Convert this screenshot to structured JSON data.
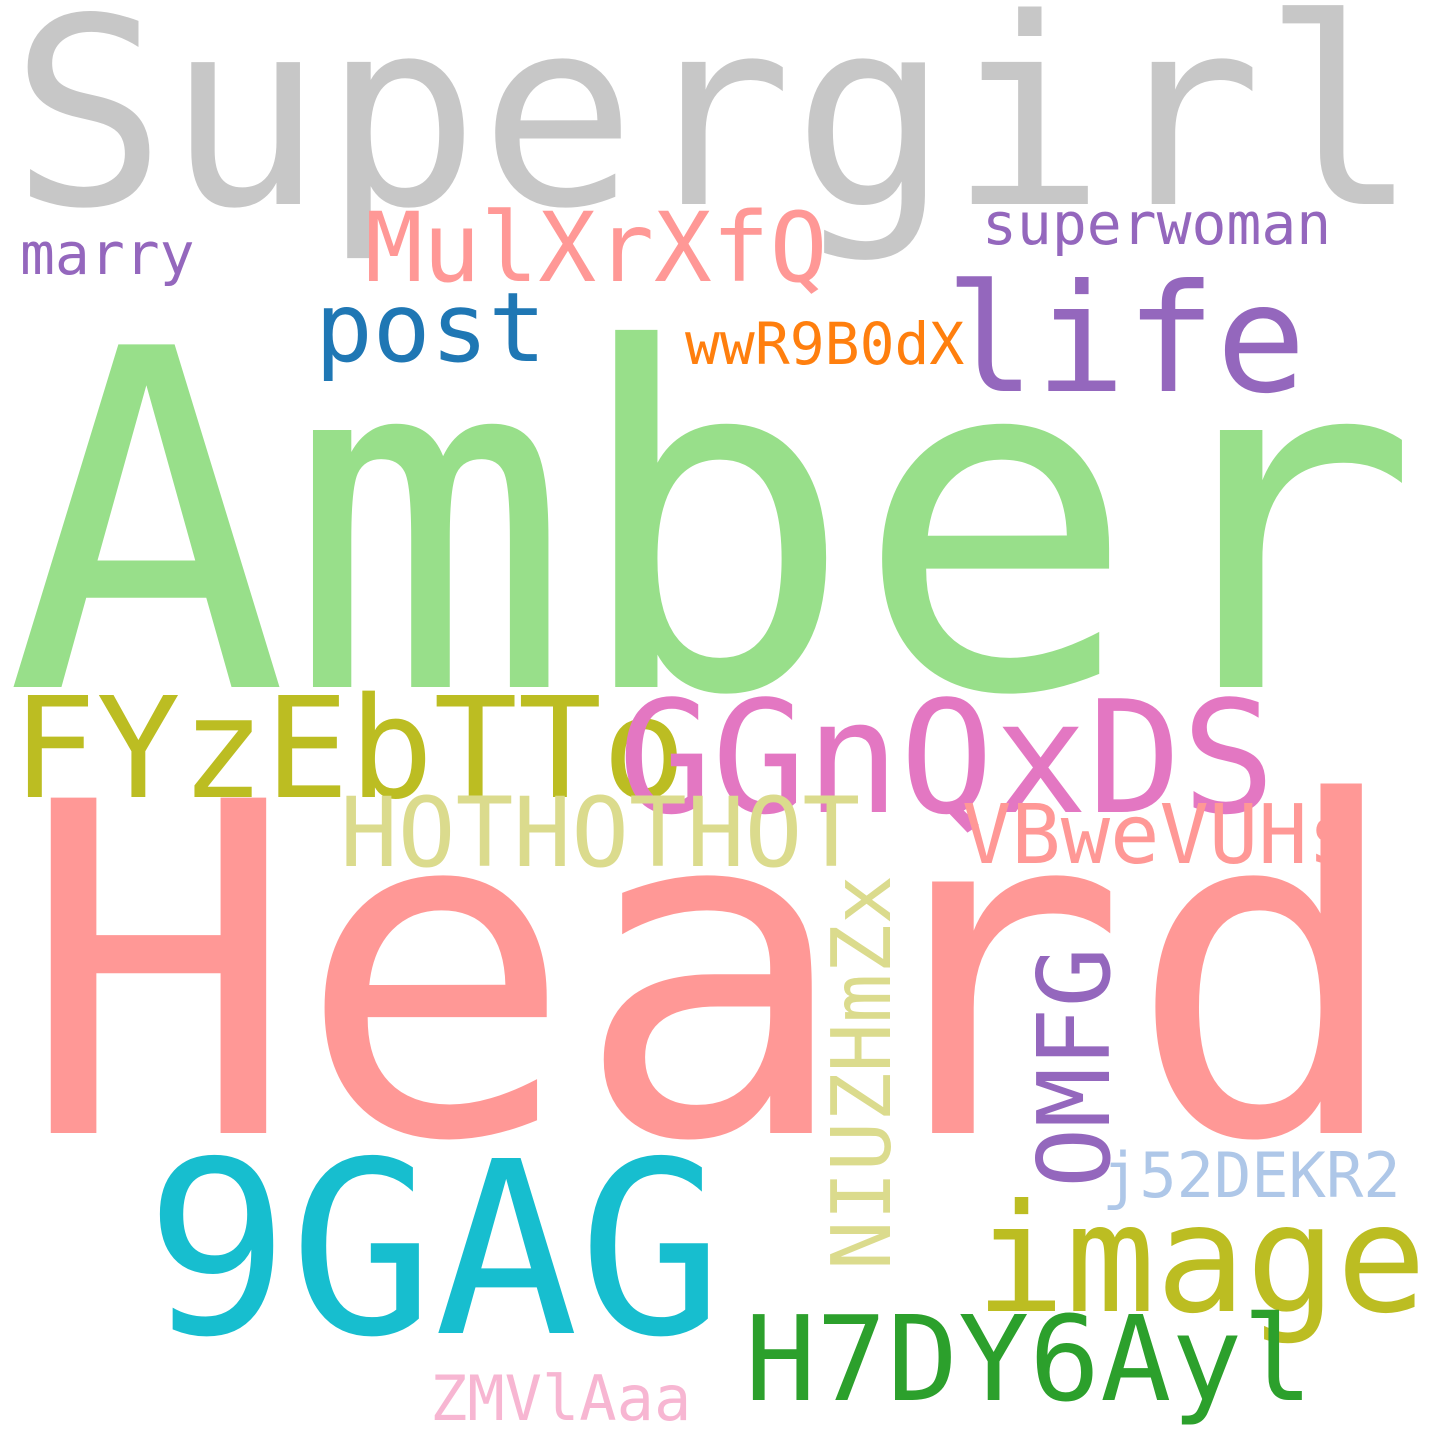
{
  "words": [
    {
      "key": "supergirl",
      "text": "Supergirl",
      "color": "#c7c7c7"
    },
    {
      "key": "marry",
      "text": "marry",
      "color": "#9467bd"
    },
    {
      "key": "mulxrxfq",
      "text": "MulXrXfQ",
      "color": "#ff9896"
    },
    {
      "key": "superwoman",
      "text": "superwoman",
      "color": "#9467bd"
    },
    {
      "key": "life",
      "text": "life",
      "color": "#9467bd"
    },
    {
      "key": "post",
      "text": "post",
      "color": "#1f77b4"
    },
    {
      "key": "wwr9b0dx",
      "text": "wwR9B0dX",
      "color": "#ff7f0e"
    },
    {
      "key": "amber",
      "text": "Amber",
      "color": "#98df8a"
    },
    {
      "key": "fyzebttogg",
      "text": "FYzEbTTo",
      "color": "#bcbd22"
    },
    {
      "key": "ggnqxds",
      "text": "GGnQxDS",
      "color": "#e377c2"
    },
    {
      "key": "hothothot",
      "text": "HOTHOTHOT",
      "color": "#dbdb8d"
    },
    {
      "key": "vbwevuhs",
      "text": "VBweVUHs",
      "color": "#ff9896"
    },
    {
      "key": "heard",
      "text": "Heard",
      "color": "#ff9896"
    },
    {
      "key": "niuzhmzx",
      "text": "NIUZHmZx",
      "color": "#dbdb8d"
    },
    {
      "key": "omfg",
      "text": "OMFG",
      "color": "#9467bd"
    },
    {
      "key": "j52dekr2",
      "text": "j52DEKR2",
      "color": "#aec7e8"
    },
    {
      "key": "ninegag",
      "text": "9GAG",
      "color": "#17becf"
    },
    {
      "key": "image",
      "text": "image",
      "color": "#bcbd22"
    },
    {
      "key": "h7dy6ayl",
      "text": "H7DY6Ayl",
      "color": "#2ca02c"
    },
    {
      "key": "zmvlaaa",
      "text": "ZMVlAaa",
      "color": "#f7b6d2"
    }
  ]
}
